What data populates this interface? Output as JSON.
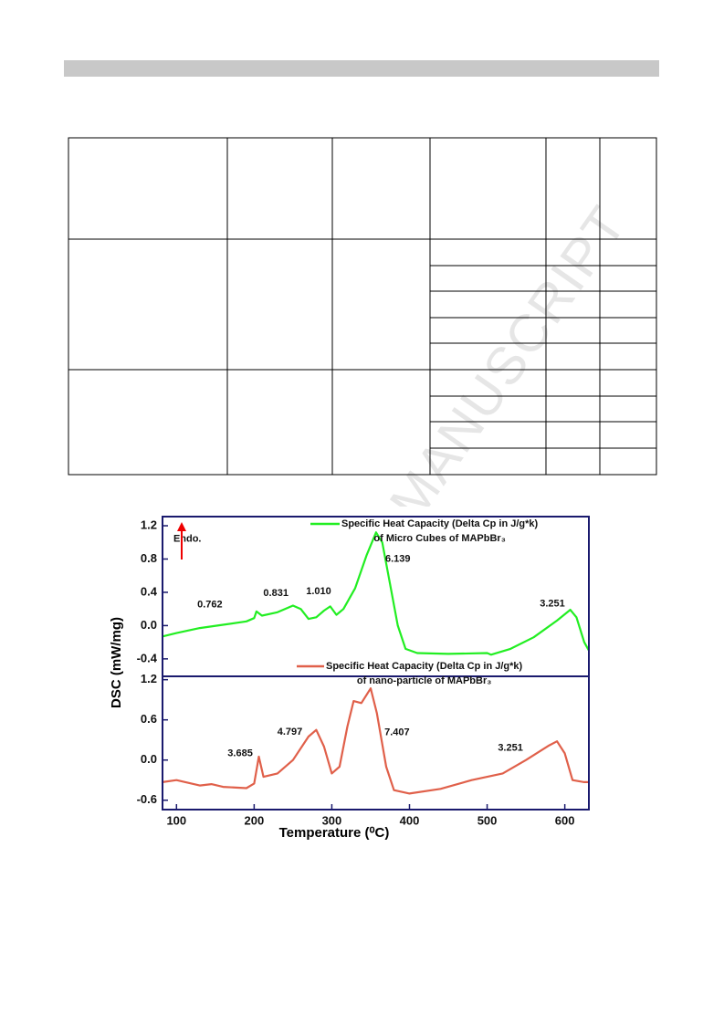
{
  "watermark": "MANUSCRIPT",
  "chart_data": [
    {
      "type": "line",
      "ylabel": "DSC (mW/mg)",
      "xlim": [
        82,
        631
      ],
      "ylim": [
        -0.61,
        1.31
      ],
      "yticks": [
        -0.4,
        {
          "value": 0,
          "label": "0.0"
        },
        0.4,
        0.8,
        1.2
      ],
      "x": [
        82,
        100,
        130,
        160,
        190,
        200,
        203,
        210,
        230,
        250,
        260,
        270,
        280,
        290,
        298,
        306,
        315,
        330,
        345,
        357,
        365,
        375,
        385,
        395,
        410,
        450,
        500,
        505,
        530,
        560,
        590,
        607,
        615,
        625,
        631
      ],
      "series": [
        {
          "name": "Specific Heat Capacity (Delta Cp in J/g*k)\nof Micro Cubes of  MAPbBr₃",
          "color": "#22ee22",
          "values": [
            -0.13,
            -0.09,
            -0.03,
            0.01,
            0.05,
            0.09,
            0.17,
            0.12,
            0.16,
            0.24,
            0.2,
            0.08,
            0.1,
            0.18,
            0.23,
            0.13,
            0.2,
            0.45,
            0.85,
            1.12,
            1.0,
            0.5,
            0.0,
            -0.28,
            -0.33,
            -0.34,
            -0.33,
            -0.35,
            -0.28,
            -0.14,
            0.06,
            0.19,
            0.1,
            -0.2,
            -0.3
          ]
        }
      ],
      "annotations": [
        {
          "text": "Endo.",
          "x": 114,
          "y": 1.04
        },
        {
          "text": "0.762",
          "x": 143,
          "y": 0.25
        },
        {
          "text": "0.831",
          "x": 228,
          "y": 0.39
        },
        {
          "text": "1.010",
          "x": 283,
          "y": 0.41
        },
        {
          "text": "6.139",
          "x": 385,
          "y": 0.8
        },
        {
          "text": "3.251",
          "x": 584,
          "y": 0.26
        }
      ]
    },
    {
      "type": "line",
      "xlabel": "Temperature (⁰C)",
      "xlim": [
        82,
        631
      ],
      "ylim": [
        -0.74,
        1.25
      ],
      "xticks": [
        100,
        200,
        300,
        400,
        500,
        600
      ],
      "yticks": [
        -0.6,
        {
          "value": 0,
          "label": "0.0"
        },
        0.6,
        1.2
      ],
      "x": [
        82,
        100,
        130,
        145,
        160,
        190,
        200,
        206,
        212,
        230,
        250,
        270,
        280,
        290,
        300,
        310,
        320,
        328,
        338,
        350,
        358,
        370,
        380,
        400,
        440,
        480,
        520,
        550,
        580,
        590,
        600,
        610,
        625,
        631
      ],
      "series": [
        {
          "name": "Specific Heat Capacity (Delta Cp in J/g*k)\nof nano-particle of  MAPbBr₃",
          "color": "#e0604a",
          "values": [
            -0.33,
            -0.3,
            -0.38,
            -0.36,
            -0.4,
            -0.42,
            -0.35,
            0.05,
            -0.25,
            -0.2,
            0.0,
            0.35,
            0.45,
            0.2,
            -0.2,
            -0.1,
            0.5,
            0.88,
            0.85,
            1.07,
            0.7,
            -0.1,
            -0.45,
            -0.5,
            -0.43,
            -0.3,
            -0.2,
            0.0,
            0.22,
            0.28,
            0.1,
            -0.3,
            -0.33,
            -0.33
          ]
        }
      ],
      "annotations": [
        {
          "text": "3.685",
          "x": 182,
          "y": 0.095
        },
        {
          "text": "4.797",
          "x": 246,
          "y": 0.42
        },
        {
          "text": "7.407",
          "x": 384,
          "y": 0.41
        },
        {
          "text": "3.251",
          "x": 530,
          "y": 0.18
        }
      ]
    }
  ]
}
